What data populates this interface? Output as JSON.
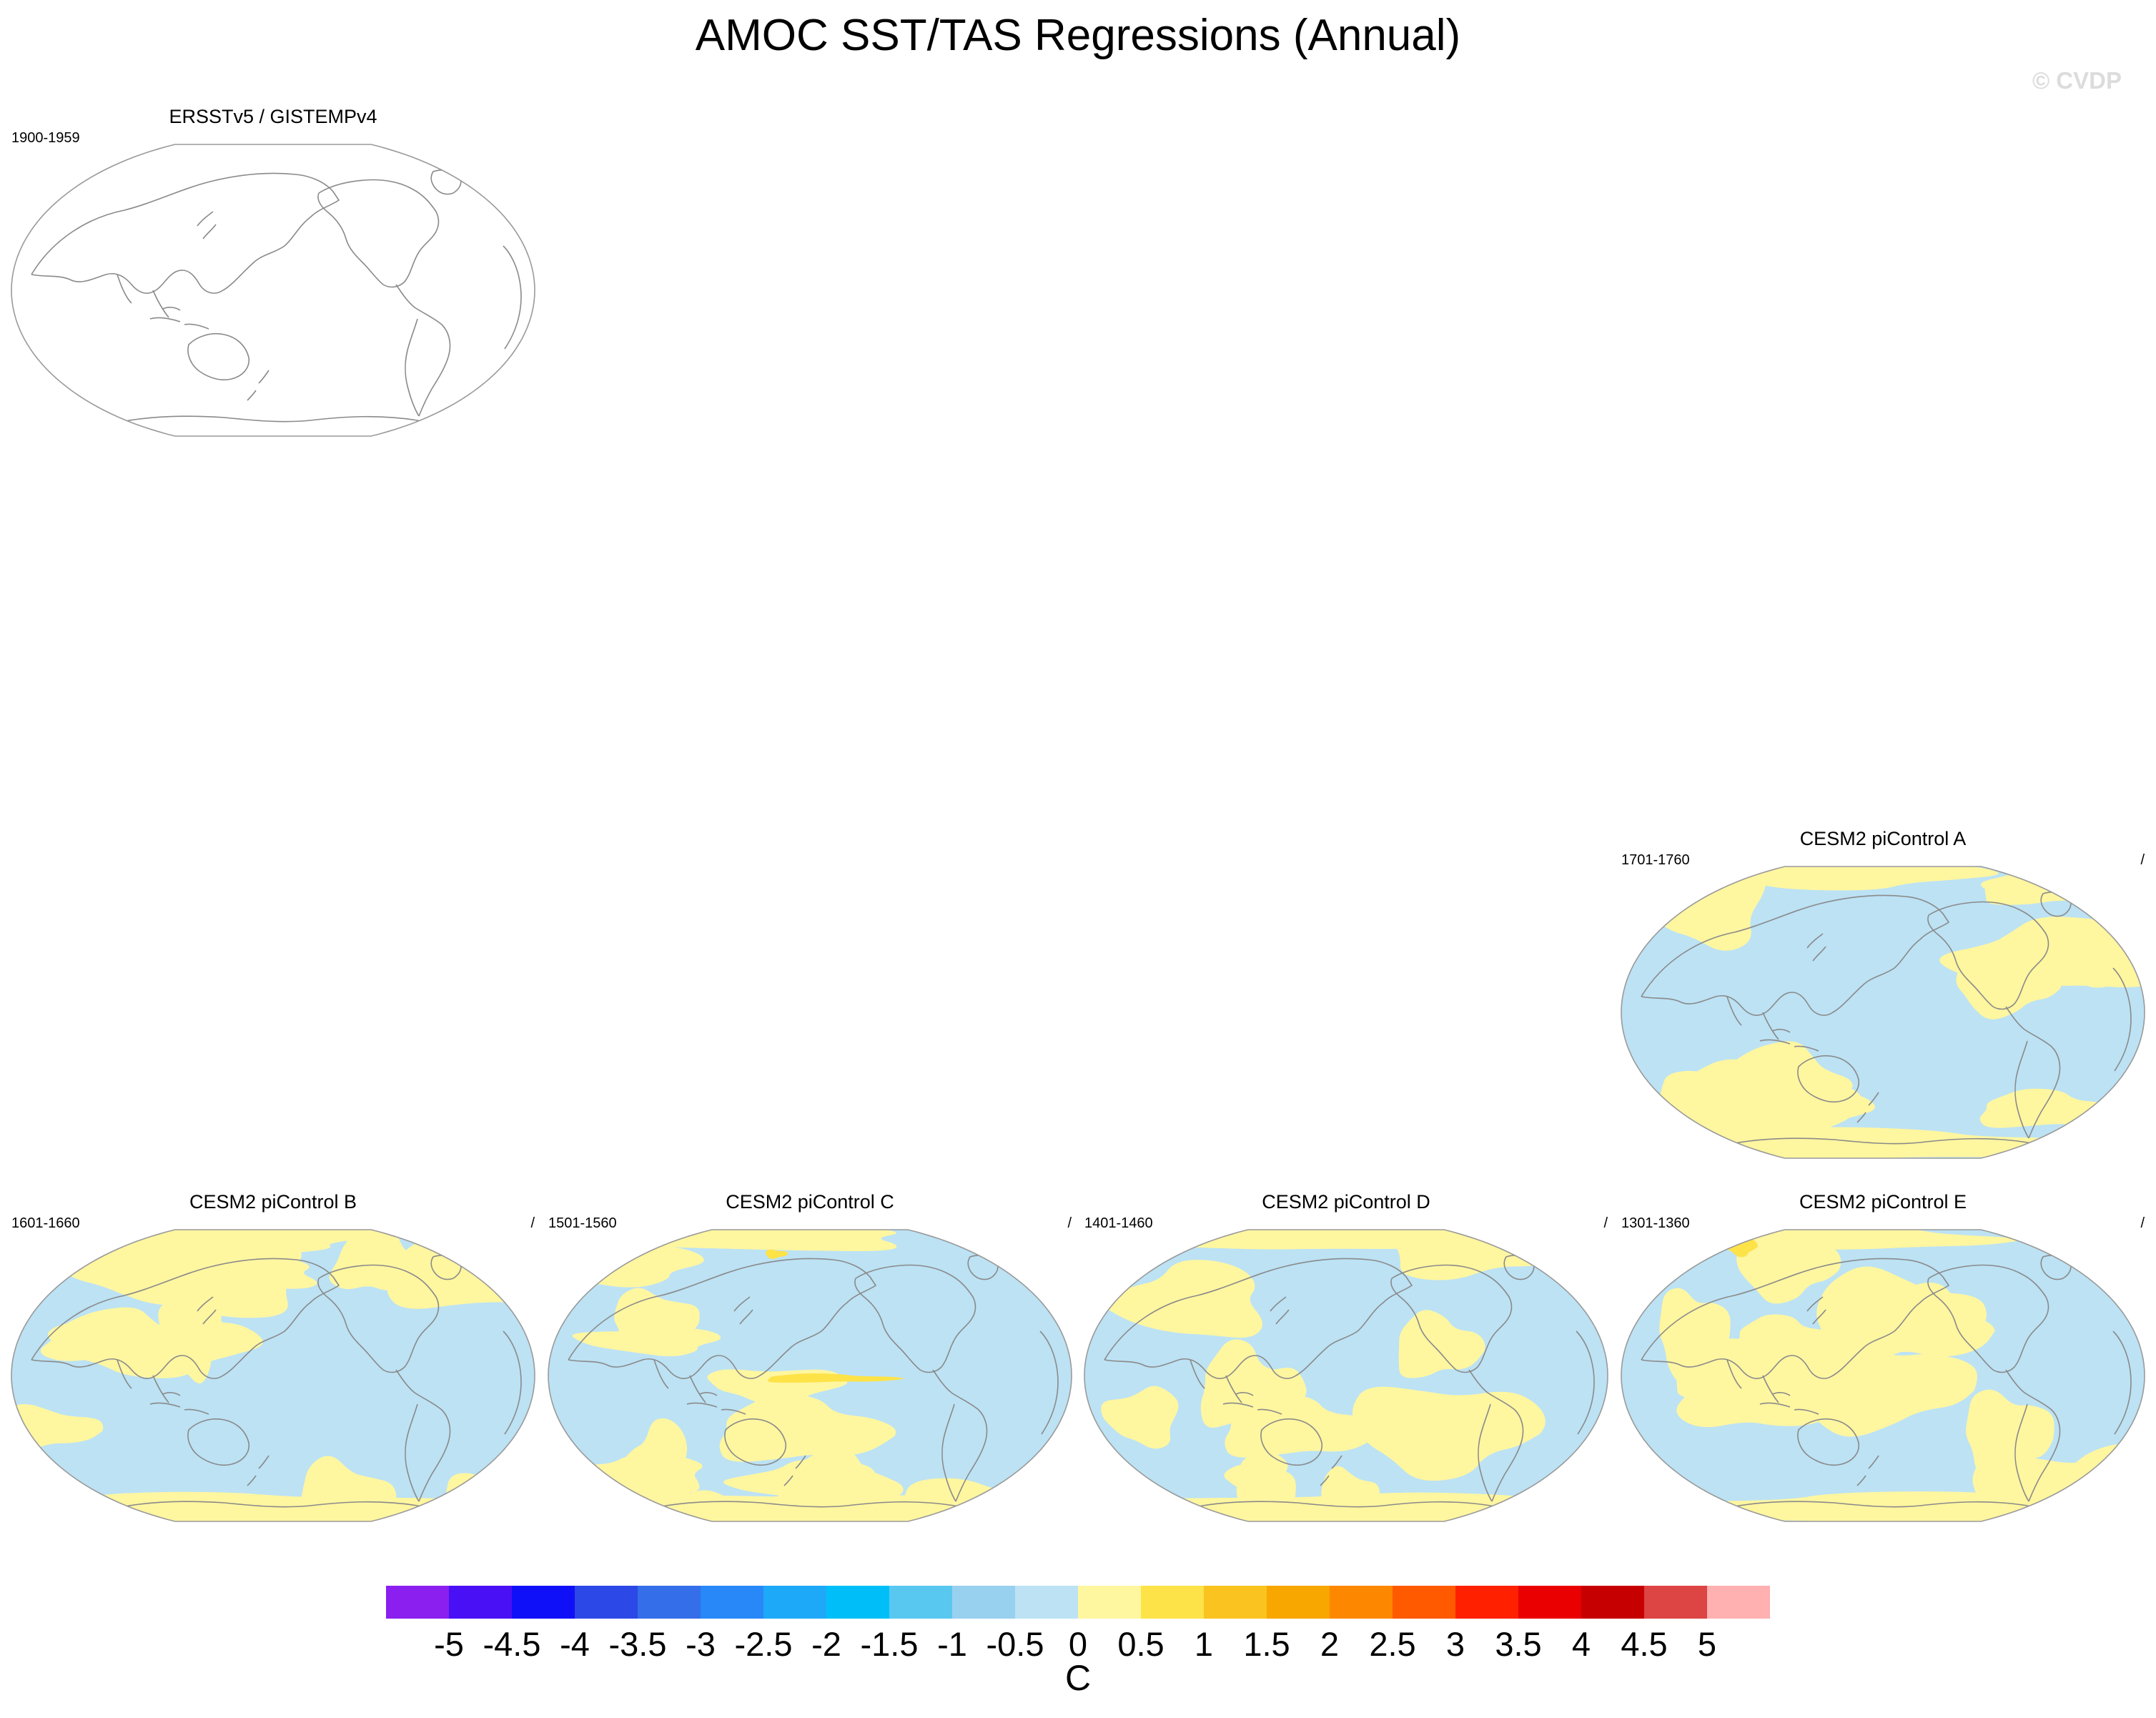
{
  "title": "AMOC SST/TAS Regressions (Annual)",
  "copyright": "© CVDP",
  "colors": {
    "warm_fill": "#fff6a0",
    "cool_fill": "#bce2f4",
    "strong_warm_fill": "#fde348",
    "coastline": "#8a8a8a",
    "frame": "#9a9a9a"
  },
  "panels": [
    {
      "id": "obs",
      "title": "ERSSTv5 / GISTEMPv4",
      "period": "1900-1959",
      "right": "",
      "filled": false
    },
    {
      "id": "A",
      "title": "CESM2 piControl A",
      "period": "1701-1760",
      "right": "/",
      "filled": true
    },
    {
      "id": "B",
      "title": "CESM2 piControl B",
      "period": "1601-1660",
      "right": "/",
      "filled": true
    },
    {
      "id": "C",
      "title": "CESM2 piControl C",
      "period": "1501-1560",
      "right": "/",
      "filled": true
    },
    {
      "id": "D",
      "title": "CESM2 piControl D",
      "period": "1401-1460",
      "right": "/",
      "filled": true
    },
    {
      "id": "E",
      "title": "CESM2 piControl E",
      "period": "1301-1360",
      "right": "/",
      "filled": true
    }
  ],
  "colorbar": {
    "labels": [
      "-5",
      "-4.5",
      "-4",
      "-3.5",
      "-3",
      "-2.5",
      "-2",
      "-1.5",
      "-1",
      "-0.5",
      "0",
      "0.5",
      "1",
      "1.5",
      "2",
      "2.5",
      "3",
      "3.5",
      "4",
      "4.5",
      "5"
    ],
    "colors": [
      "#8a1ff0",
      "#4a10f5",
      "#1010f8",
      "#2c48e6",
      "#346ee8",
      "#2888f8",
      "#1ea8f8",
      "#00bff8",
      "#58c8f0",
      "#98d0f0",
      "#bce2f4",
      "#fff6a0",
      "#fde348",
      "#fac320",
      "#f8a600",
      "#fd8800",
      "#ff5a00",
      "#ff2000",
      "#ea0000",
      "#c60000",
      "#dd4444",
      "#ffb0b0"
    ],
    "units": "C"
  }
}
